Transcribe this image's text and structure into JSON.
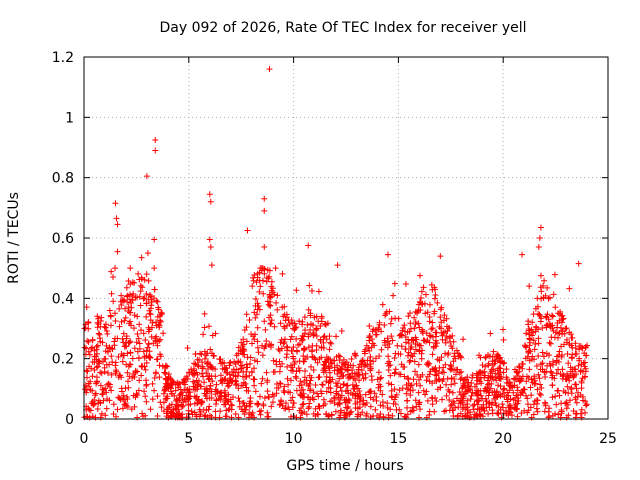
{
  "chart_data": {
    "type": "scatter",
    "title": "Day 092 of 2026, Rate Of TEC Index for receiver yell",
    "xlabel": "GPS time / hours",
    "ylabel": "ROTI / TECUs",
    "xlim": [
      0,
      25
    ],
    "ylim": [
      0,
      1.2
    ],
    "xticks": [
      "0",
      "5",
      "10",
      "15",
      "20",
      "25"
    ],
    "yticks": [
      "0",
      "0.2",
      "0.4",
      "0.6",
      "0.8",
      "1",
      "1.2"
    ],
    "grid": true,
    "marker": "+",
    "series": [
      {
        "name": "ROTI",
        "color": "#ff0000",
        "note": "Dense cloud of points, typical 0.05-0.3 TECUs across 0-24 h; notable outliers listed",
        "outliers": [
          {
            "x": 8.85,
            "y": 1.16
          },
          {
            "x": 3.4,
            "y": 0.925
          },
          {
            "x": 3.4,
            "y": 0.89
          },
          {
            "x": 3.0,
            "y": 0.805
          },
          {
            "x": 6.0,
            "y": 0.745
          },
          {
            "x": 6.05,
            "y": 0.72
          },
          {
            "x": 8.6,
            "y": 0.73
          },
          {
            "x": 8.6,
            "y": 0.69
          },
          {
            "x": 1.5,
            "y": 0.715
          },
          {
            "x": 1.55,
            "y": 0.665
          },
          {
            "x": 1.6,
            "y": 0.645
          },
          {
            "x": 7.8,
            "y": 0.625
          },
          {
            "x": 21.8,
            "y": 0.635
          },
          {
            "x": 21.75,
            "y": 0.6
          },
          {
            "x": 21.7,
            "y": 0.57
          },
          {
            "x": 3.35,
            "y": 0.595
          },
          {
            "x": 6.0,
            "y": 0.595
          },
          {
            "x": 6.05,
            "y": 0.57
          },
          {
            "x": 10.7,
            "y": 0.575
          },
          {
            "x": 8.6,
            "y": 0.57
          },
          {
            "x": 1.6,
            "y": 0.555
          },
          {
            "x": 3.05,
            "y": 0.55
          },
          {
            "x": 14.5,
            "y": 0.545
          },
          {
            "x": 17.0,
            "y": 0.54
          },
          {
            "x": 20.9,
            "y": 0.545
          },
          {
            "x": 2.75,
            "y": 0.535
          },
          {
            "x": 23.6,
            "y": 0.515
          },
          {
            "x": 6.1,
            "y": 0.51
          },
          {
            "x": 12.1,
            "y": 0.51
          }
        ]
      }
    ]
  }
}
